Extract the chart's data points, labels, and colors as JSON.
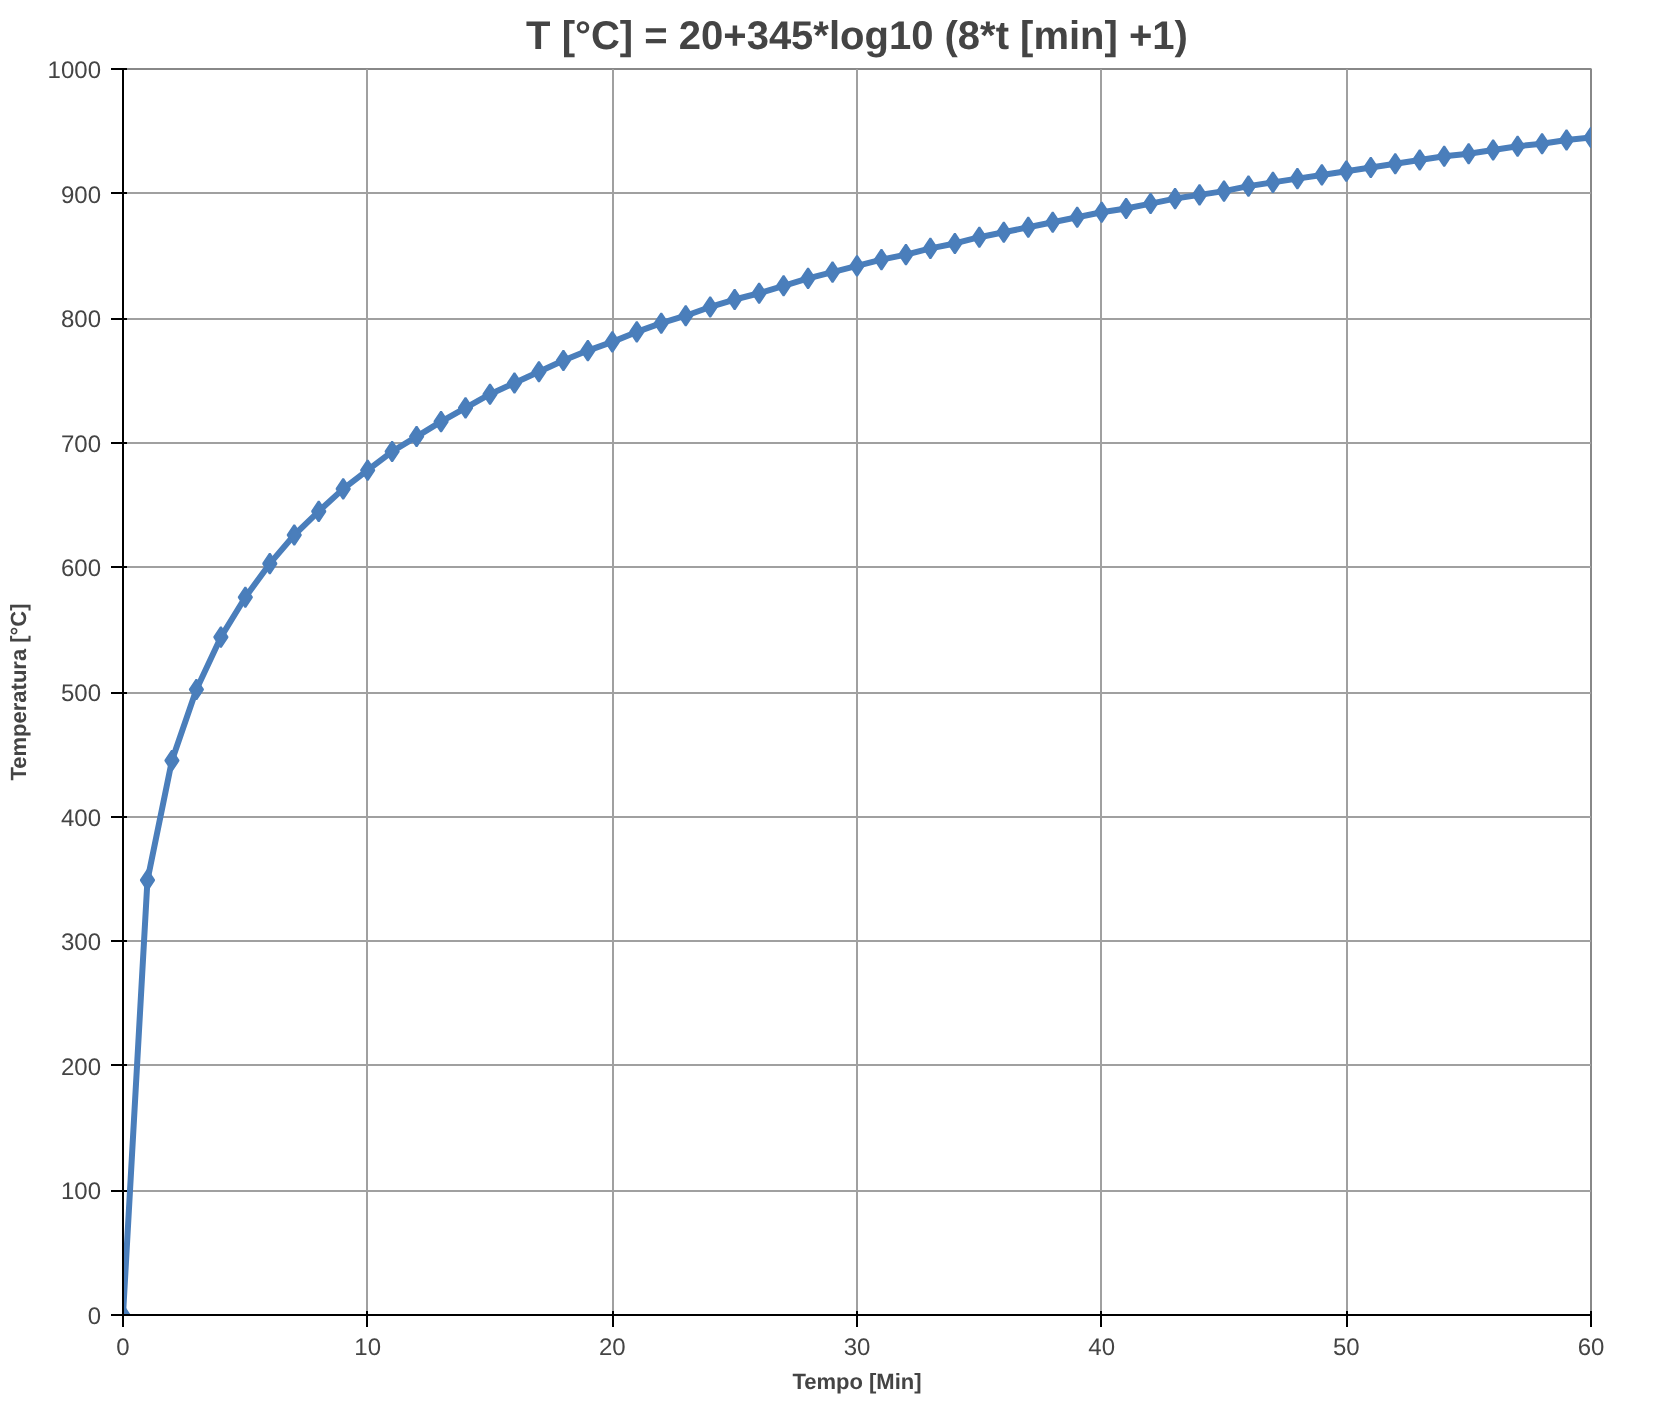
{
  "chart_data": {
    "type": "line",
    "title": "T [°C] = 20+345*log10 (8*t [min] +1)",
    "xlabel": "Tempo [Min]",
    "ylabel": "Temperatura [°C]",
    "x": [
      0,
      1,
      2,
      3,
      4,
      5,
      6,
      7,
      8,
      9,
      10,
      11,
      12,
      13,
      14,
      15,
      16,
      17,
      18,
      19,
      20,
      21,
      22,
      23,
      24,
      25,
      26,
      27,
      28,
      29,
      30,
      31,
      32,
      33,
      34,
      35,
      36,
      37,
      38,
      39,
      40,
      41,
      42,
      43,
      44,
      45,
      46,
      47,
      48,
      49,
      50,
      51,
      52,
      53,
      54,
      55,
      56,
      57,
      58,
      59,
      60
    ],
    "series": [
      {
        "color": "#4a7ebb",
        "values": [
          0,
          349,
          445,
          502,
          544,
          576,
          603,
          626,
          645,
          663,
          678,
          693,
          705,
          717,
          728,
          739,
          748,
          757,
          766,
          774,
          781,
          789,
          796,
          802,
          809,
          815,
          820,
          826,
          832,
          837,
          842,
          847,
          851,
          856,
          860,
          865,
          869,
          873,
          877,
          881,
          885,
          888,
          892,
          896,
          899,
          902,
          906,
          909,
          912,
          915,
          918,
          921,
          924,
          927,
          930,
          932,
          935,
          938,
          940,
          943,
          945
        ]
      }
    ],
    "xlim": [
      0,
      60
    ],
    "xticks": [
      0,
      10,
      20,
      30,
      40,
      50,
      60
    ],
    "ylim": [
      0,
      1000
    ],
    "yticks": [
      0,
      100,
      200,
      300,
      400,
      500,
      600,
      700,
      800,
      900,
      1000
    ],
    "grid": true,
    "marker": "diamond",
    "line_style": "solid"
  }
}
